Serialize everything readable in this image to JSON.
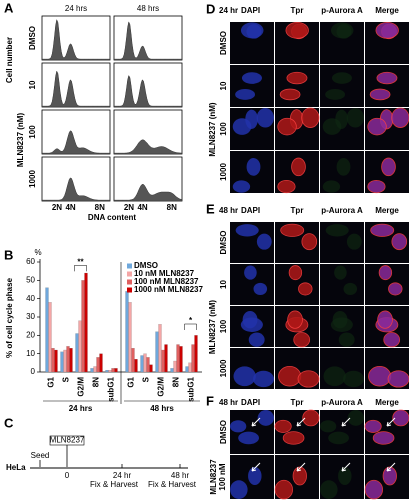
{
  "panel_a": {
    "label": "A",
    "columns": [
      "24 hrs",
      "48 hrs"
    ],
    "rows": [
      "DMSO",
      "10",
      "100",
      "1000"
    ],
    "y_label": "Cell number",
    "group_label": "MLN8237 (nM)",
    "x_ticks": [
      "2N",
      "4N",
      "8N"
    ],
    "x_label": "DNA content"
  },
  "chart_data": {
    "type": "bar",
    "label": "B",
    "y_label": "% of cell cycle phase",
    "y_unit": "%",
    "categories": [
      "G1",
      "S",
      "G2/M",
      "8N",
      "subG1",
      "G1",
      "S",
      "G2/M",
      "8N",
      "subG1"
    ],
    "groups": [
      "24 hrs",
      "48 hrs"
    ],
    "series": [
      {
        "name": "DMSO",
        "color": "#6fa8dc",
        "values": [
          46,
          11,
          21,
          2,
          1,
          44,
          9,
          22,
          2,
          3
        ]
      },
      {
        "name": "10 nM MLN8237",
        "color": "#f4a6a6",
        "values": [
          38,
          12,
          28,
          3,
          1,
          38,
          10,
          26,
          6,
          5
        ]
      },
      {
        "name": "100 nM MLN8237",
        "color": "#e06060",
        "values": [
          13,
          14,
          50,
          8,
          2,
          13,
          8,
          12,
          15,
          15
        ]
      },
      {
        "name": "1000 nM MLN8237",
        "color": "#cc0000",
        "values": [
          12,
          13,
          54,
          10,
          2,
          7,
          4,
          15,
          14,
          20
        ]
      }
    ],
    "ylim": [
      0,
      60
    ],
    "yticks": [
      0,
      10,
      20,
      30,
      40,
      50,
      60
    ],
    "legend": "upper right",
    "annotations": [
      {
        "text": "**"
      },
      {
        "text": "*"
      }
    ]
  },
  "panel_c": {
    "label": "C",
    "cell_line": "HeLa",
    "seed": "Seed",
    "drug": "MLN8237",
    "t0": "0",
    "t1": "24 hr",
    "t2": "48 hr",
    "action1": "Fix & Harvest",
    "action2": "Fix & Harvest"
  },
  "panel_d": {
    "label": "D",
    "time": "24 hr",
    "channels": [
      "DAPI",
      "Tpr",
      "p-Aurora A",
      "Merge"
    ],
    "rows": [
      "DMSO",
      "10",
      "100",
      "1000"
    ],
    "group_label": "MLN8237 (nM)"
  },
  "panel_e": {
    "label": "E",
    "time": "48 hr",
    "channels": [
      "DAPI",
      "Tpr",
      "p-Aurora A",
      "Merge"
    ],
    "rows": [
      "DMSO",
      "10",
      "100",
      "1000"
    ],
    "group_label": "MLN8237 (nM)"
  },
  "panel_f": {
    "label": "F",
    "time": "48 hr",
    "channels": [
      "DAPI",
      "Tpr",
      "p-Aurora A",
      "Merge"
    ],
    "rows": [
      "DMSO"
    ],
    "drug_row": {
      "label": "MLN8237",
      "dose": "100 nM"
    }
  }
}
